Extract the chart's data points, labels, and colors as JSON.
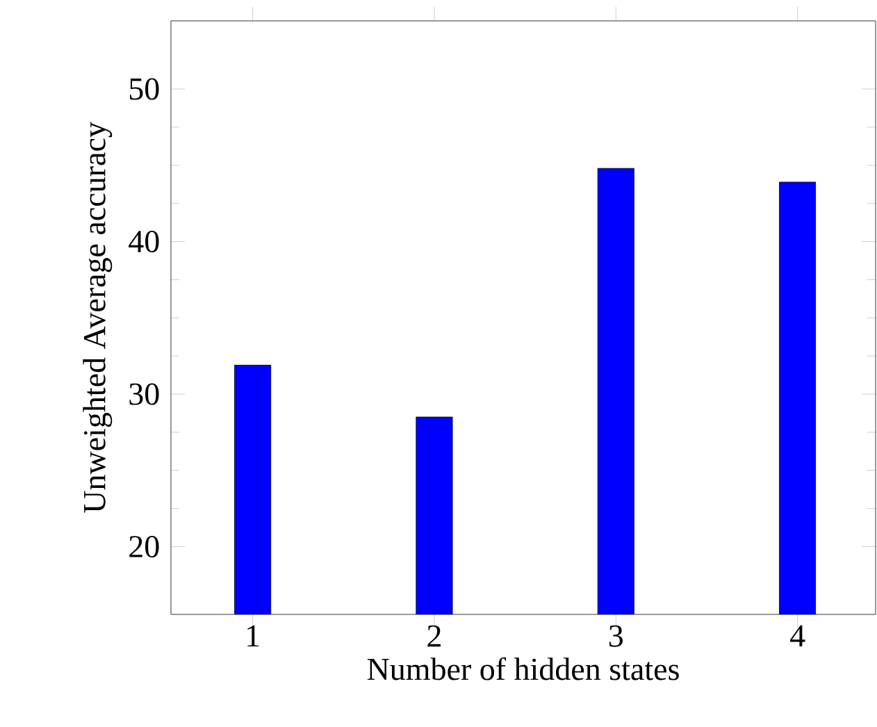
{
  "chart_data": {
    "type": "bar",
    "xlabel": "Number of hidden states",
    "ylabel": "Unweighted Average accuracy",
    "x": [
      1,
      2,
      3,
      4
    ],
    "values": [
      31.9,
      28.5,
      44.8,
      43.9
    ],
    "color": "#0000ff",
    "xlim": [
      0.55,
      4.43
    ],
    "ylim": [
      15.56,
      54.47
    ],
    "xticks": [
      1,
      2,
      3,
      4
    ],
    "yticks": [
      20,
      30,
      40,
      50
    ]
  }
}
